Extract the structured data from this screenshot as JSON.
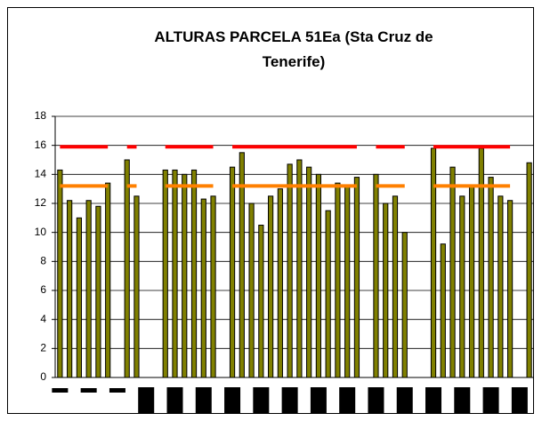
{
  "chart_data": {
    "type": "bar",
    "title": "ALTURAS PARCELA 51Ea (Sta Cruz de Tenerife)",
    "categories": [
      null,
      null,
      null,
      null,
      null,
      null,
      null,
      null,
      null,
      null,
      null,
      null,
      null,
      null,
      null,
      null,
      null,
      null,
      null,
      null,
      null,
      null,
      null,
      null,
      null,
      null,
      null,
      null,
      null,
      null,
      null,
      null,
      null,
      null,
      null,
      null,
      null,
      null,
      null,
      null,
      null,
      null,
      null,
      null,
      null,
      null,
      null,
      null,
      null,
      null
    ],
    "series": [
      {
        "color": "#808000",
        "values": [
          14.3,
          12.2,
          11,
          12.2,
          11.8,
          13.4,
          null,
          15,
          12.5,
          null,
          null,
          14.3,
          14.3,
          14,
          14.3,
          12.3,
          12.5,
          null,
          14.5,
          15.5,
          12,
          10.5,
          12.5,
          13,
          14.7,
          15,
          14.5,
          14,
          11.5,
          13.4,
          13.2,
          13.8,
          null,
          14,
          12,
          12.5,
          10,
          null,
          null,
          15.8,
          9.2,
          14.5,
          12.5,
          13.2,
          15.8,
          13.8,
          12.5,
          12.2,
          null,
          14.8
        ]
      },
      {
        "type": "line",
        "color": "#ff0000",
        "values": [
          15.9,
          15.9,
          15.9,
          15.9,
          15.9,
          15.9,
          null,
          15.9,
          15.9,
          null,
          null,
          15.9,
          15.9,
          15.9,
          15.9,
          15.9,
          15.9,
          null,
          15.9,
          15.9,
          15.9,
          15.9,
          15.9,
          15.9,
          15.9,
          15.9,
          15.9,
          15.9,
          15.9,
          15.9,
          15.9,
          15.9,
          null,
          15.9,
          15.9,
          15.9,
          15.9,
          null,
          null,
          15.9,
          15.9,
          15.9,
          15.9,
          15.9,
          15.9,
          15.9,
          15.9,
          15.9,
          null,
          null
        ]
      },
      {
        "type": "line",
        "color": "#ff8000",
        "values": [
          13.2,
          13.2,
          13.2,
          13.2,
          13.2,
          13.2,
          null,
          13.2,
          13.2,
          null,
          null,
          13.2,
          13.2,
          13.2,
          13.2,
          13.2,
          13.2,
          null,
          13.2,
          13.2,
          13.2,
          13.2,
          13.2,
          13.2,
          13.2,
          13.2,
          13.2,
          13.2,
          13.2,
          13.2,
          13.2,
          13.2,
          null,
          13.2,
          13.2,
          13.2,
          13.2,
          null,
          null,
          13.2,
          13.2,
          13.2,
          13.2,
          13.2,
          13.2,
          13.2,
          13.2,
          13.2,
          null,
          null
        ]
      }
    ],
    "ylim": [
      0,
      18
    ],
    "yticks": [
      0,
      2,
      4,
      6,
      8,
      10,
      12,
      14,
      16,
      18
    ],
    "grid": true
  }
}
